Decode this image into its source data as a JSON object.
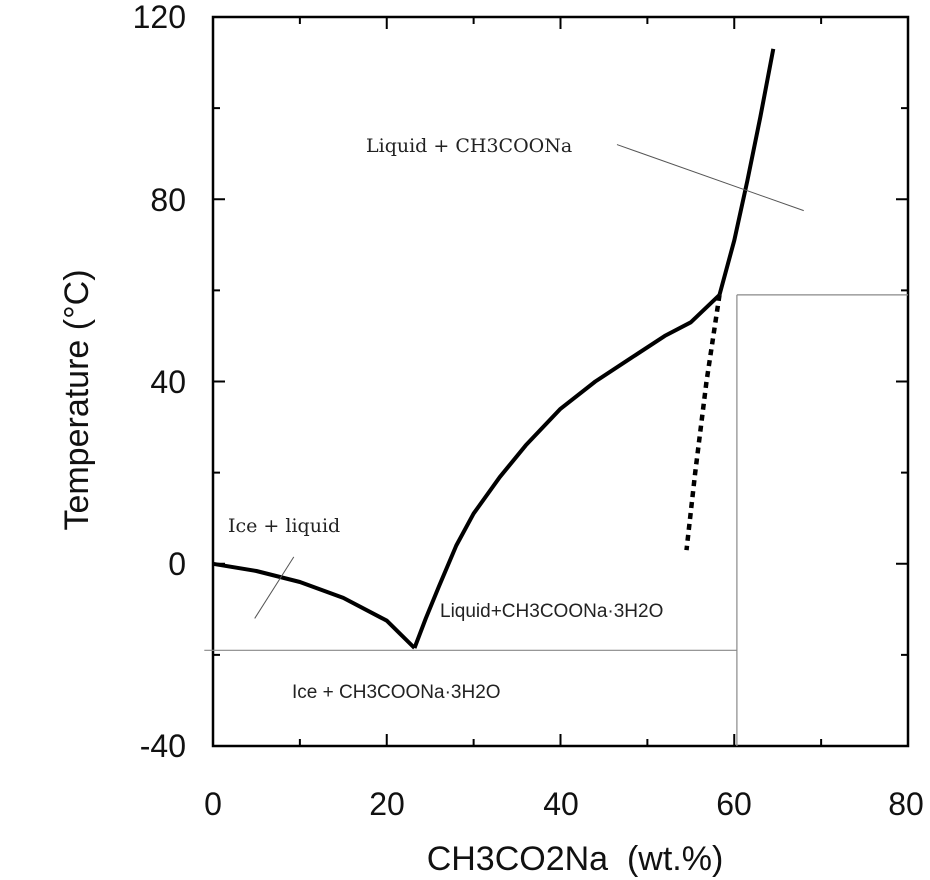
{
  "chart_data": {
    "type": "line",
    "title": "",
    "xlabel": "CH3CO2Na  (wt.%)",
    "ylabel": "Temperature (°C)",
    "xlim": [
      0,
      80
    ],
    "ylim": [
      -40,
      120
    ],
    "x_ticks": [
      0,
      20,
      40,
      60,
      80
    ],
    "y_ticks": [
      -40,
      0,
      40,
      80,
      120
    ],
    "grid": false,
    "series": [
      {
        "style": "solid",
        "points": [
          [
            0,
            0
          ],
          [
            5,
            -1.6
          ],
          [
            10,
            -4
          ],
          [
            15,
            -7.5
          ],
          [
            20,
            -12.5
          ],
          [
            23.2,
            -18.5
          ]
        ]
      },
      {
        "style": "solid",
        "points": [
          [
            23.2,
            -18.5
          ],
          [
            24.5,
            -12
          ],
          [
            26,
            -5
          ],
          [
            28,
            4
          ],
          [
            30,
            11
          ],
          [
            33,
            19
          ],
          [
            36,
            26
          ],
          [
            40,
            34
          ],
          [
            44,
            40
          ],
          [
            48,
            45
          ],
          [
            52,
            50
          ],
          [
            55,
            53
          ],
          [
            58.3,
            59
          ]
        ]
      },
      {
        "style": "solid",
        "points": [
          [
            58.3,
            59
          ],
          [
            60,
            71
          ],
          [
            61.5,
            84
          ],
          [
            63,
            98
          ],
          [
            64.5,
            113
          ]
        ]
      },
      {
        "style": "dotted",
        "points": [
          [
            58.3,
            59
          ],
          [
            56.8,
            40
          ],
          [
            55.5,
            20
          ],
          [
            54.5,
            3
          ]
        ]
      },
      {
        "style": "thin",
        "points": [
          [
            -1,
            -19
          ],
          [
            60.3,
            -19
          ]
        ]
      },
      {
        "style": "thin",
        "points": [
          [
            60.3,
            -40
          ],
          [
            60.3,
            59
          ]
        ]
      },
      {
        "style": "thin",
        "points": [
          [
            60.3,
            59
          ],
          [
            80,
            59
          ]
        ]
      }
    ],
    "leader_lines": [
      {
        "points": [
          [
            4.8,
            -12
          ],
          [
            9.3,
            1.5
          ]
        ]
      },
      {
        "points": [
          [
            46.5,
            92
          ],
          [
            68,
            77.5
          ]
        ]
      }
    ],
    "annotations": [
      {
        "text": "Ice + liquid",
        "at": [
          1.7,
          7
        ]
      },
      {
        "text": "Liquid + CH3COONa",
        "at": [
          17.5,
          91
        ]
      },
      {
        "text": "Liquid+CH3COONa·3H2O",
        "at": [
          26,
          -10
        ]
      },
      {
        "text": "Ice + CH3COONa·3H2O",
        "at": [
          9,
          -28
        ]
      }
    ]
  }
}
